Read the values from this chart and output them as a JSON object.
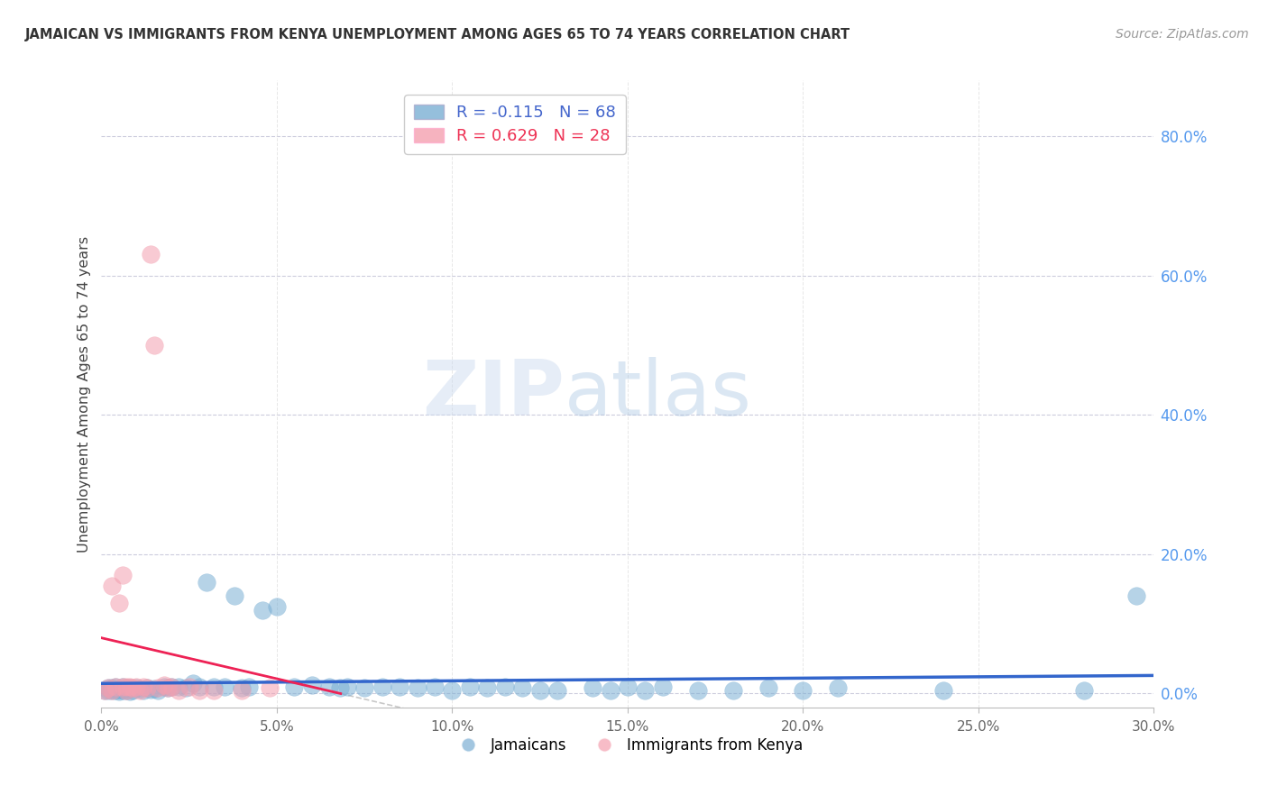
{
  "title": "JAMAICAN VS IMMIGRANTS FROM KENYA UNEMPLOYMENT AMONG AGES 65 TO 74 YEARS CORRELATION CHART",
  "source": "Source: ZipAtlas.com",
  "ylabel": "Unemployment Among Ages 65 to 74 years",
  "xlim": [
    0.0,
    0.3
  ],
  "ylim": [
    -0.02,
    0.88
  ],
  "xticks": [
    0.0,
    0.05,
    0.1,
    0.15,
    0.2,
    0.25,
    0.3
  ],
  "yticks_right": [
    0.0,
    0.2,
    0.4,
    0.6,
    0.8
  ],
  "ytick_labels_right": [
    "0.0%",
    "20.0%",
    "40.0%",
    "60.0%",
    "80.0%"
  ],
  "xtick_labels": [
    "0.0%",
    "5.0%",
    "10.0%",
    "15.0%",
    "20.0%",
    "25.0%",
    "30.0%"
  ],
  "blue_color": "#7BAFD4",
  "pink_color": "#F4A0B0",
  "blue_line_color": "#3366CC",
  "pink_line_color": "#EE2255",
  "pink_dash_color": "#E8A0B0",
  "R_blue": -0.115,
  "N_blue": 68,
  "R_pink": 0.629,
  "N_pink": 28,
  "legend_label_blue": "Jamaicans",
  "legend_label_pink": "Immigrants from Kenya",
  "watermark_zip": "ZIP",
  "watermark_atlas": "atlas",
  "grid_color": "#CCCCDD",
  "vgrid_color": "#DDDDDD",
  "jamaican_x": [
    0.001,
    0.002,
    0.002,
    0.003,
    0.003,
    0.004,
    0.004,
    0.005,
    0.005,
    0.006,
    0.006,
    0.007,
    0.007,
    0.008,
    0.008,
    0.009,
    0.01,
    0.011,
    0.012,
    0.013,
    0.014,
    0.015,
    0.016,
    0.018,
    0.019,
    0.02,
    0.022,
    0.024,
    0.026,
    0.028,
    0.03,
    0.032,
    0.035,
    0.038,
    0.04,
    0.042,
    0.046,
    0.05,
    0.055,
    0.06,
    0.065,
    0.068,
    0.07,
    0.075,
    0.08,
    0.085,
    0.09,
    0.095,
    0.1,
    0.105,
    0.11,
    0.115,
    0.12,
    0.125,
    0.13,
    0.14,
    0.145,
    0.15,
    0.155,
    0.16,
    0.17,
    0.18,
    0.19,
    0.2,
    0.21,
    0.24,
    0.28,
    0.295
  ],
  "jamaican_y": [
    0.005,
    0.005,
    0.008,
    0.005,
    0.008,
    0.005,
    0.01,
    0.003,
    0.006,
    0.005,
    0.01,
    0.005,
    0.008,
    0.003,
    0.008,
    0.005,
    0.008,
    0.007,
    0.005,
    0.008,
    0.006,
    0.007,
    0.005,
    0.01,
    0.009,
    0.01,
    0.01,
    0.008,
    0.015,
    0.01,
    0.16,
    0.01,
    0.01,
    0.14,
    0.008,
    0.01,
    0.12,
    0.125,
    0.01,
    0.012,
    0.01,
    0.008,
    0.01,
    0.008,
    0.01,
    0.01,
    0.008,
    0.01,
    0.005,
    0.01,
    0.008,
    0.01,
    0.008,
    0.005,
    0.005,
    0.008,
    0.005,
    0.01,
    0.005,
    0.01,
    0.005,
    0.005,
    0.008,
    0.005,
    0.008,
    0.005,
    0.005,
    0.14
  ],
  "kenya_x": [
    0.001,
    0.002,
    0.003,
    0.003,
    0.004,
    0.005,
    0.006,
    0.006,
    0.007,
    0.007,
    0.008,
    0.009,
    0.01,
    0.011,
    0.012,
    0.013,
    0.014,
    0.015,
    0.016,
    0.018,
    0.019,
    0.02,
    0.022,
    0.025,
    0.028,
    0.032,
    0.04,
    0.048
  ],
  "kenya_y": [
    0.005,
    0.008,
    0.005,
    0.155,
    0.01,
    0.13,
    0.01,
    0.17,
    0.005,
    0.01,
    0.01,
    0.008,
    0.01,
    0.005,
    0.01,
    0.008,
    0.63,
    0.5,
    0.008,
    0.012,
    0.008,
    0.01,
    0.005,
    0.01,
    0.005,
    0.005,
    0.005,
    0.008
  ]
}
